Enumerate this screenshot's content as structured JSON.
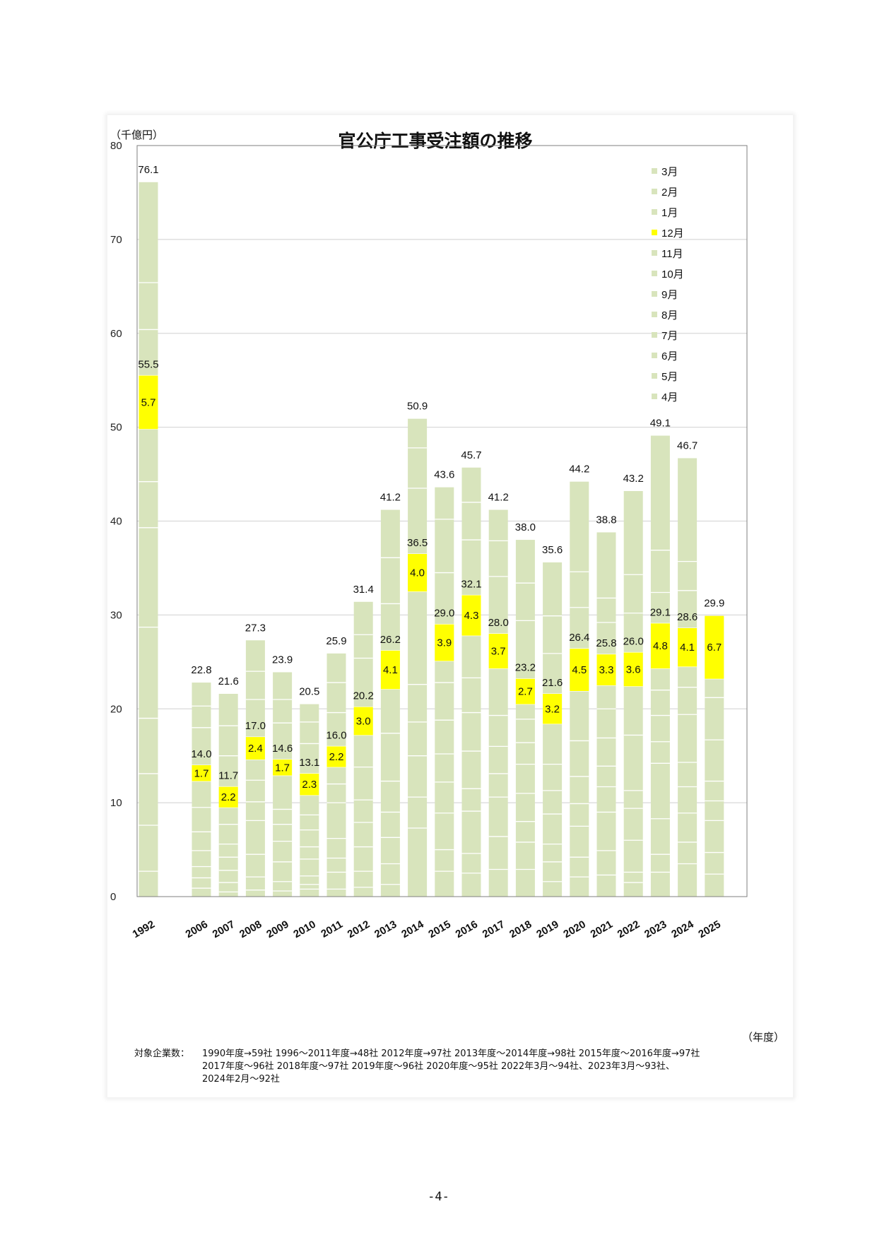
{
  "page": {
    "page_number": "-4-"
  },
  "note": {
    "prefix": "対象企業数：",
    "lines": [
      "1990年度→59社 1996～2011年度→48社 2012年度→97社 2013年度～2014年度→98社 2015年度～2016年度→97社",
      "2017年度～96社 2018年度～97社 2019年度～96社 2020年度～95社 2022年3月～94社、2023年3月～93社、",
      "2024年2月～92社"
    ]
  },
  "colors": {
    "bar_fill": "#d8e4bc",
    "december_fill": "#ffff00",
    "gridline": "#d9d9d9",
    "frame": "#7f7f7f"
  },
  "chart_data": {
    "type": "bar",
    "stacked": true,
    "title": "官公庁工事受注額の推移",
    "ylabel": "（千億円）",
    "xlabel": "（年度）",
    "ylim": [
      0,
      80
    ],
    "yticks": [
      0,
      10,
      20,
      30,
      40,
      50,
      60,
      70,
      80
    ],
    "grid": true,
    "legend_position": "top-right",
    "legend": [
      "3月",
      "2月",
      "1月",
      "12月",
      "11月",
      "10月",
      "9月",
      "8月",
      "7月",
      "6月",
      "5月",
      "4月"
    ],
    "highlight_series": "12月",
    "categories": [
      "1992",
      "2006",
      "2007",
      "2008",
      "2009",
      "2010",
      "2011",
      "2012",
      "2013",
      "2014",
      "2015",
      "2016",
      "2017",
      "2018",
      "2019",
      "2020",
      "2021",
      "2022",
      "2023",
      "2024",
      "2025"
    ],
    "gap_after_index": 0,
    "annual_totals": [
      76.1,
      22.8,
      21.6,
      27.3,
      23.9,
      20.5,
      25.9,
      31.4,
      41.2,
      50.9,
      43.6,
      45.7,
      41.2,
      38.0,
      35.6,
      44.2,
      38.8,
      43.2,
      49.1,
      46.7,
      29.9
    ],
    "cumulative_through_december": [
      55.5,
      14.0,
      11.7,
      17.0,
      14.6,
      13.1,
      16.0,
      20.2,
      26.2,
      36.5,
      29.0,
      32.1,
      28.0,
      23.2,
      21.6,
      26.4,
      25.8,
      26.0,
      29.1,
      28.6,
      29.9
    ],
    "december_values": [
      5.7,
      1.7,
      2.2,
      2.4,
      1.7,
      2.3,
      2.2,
      3.0,
      4.1,
      4.0,
      3.9,
      4.3,
      3.7,
      2.7,
      3.2,
      4.5,
      3.3,
      3.6,
      4.8,
      4.1,
      6.7
    ],
    "monthly_cumulative_estimates": [
      [
        2.7,
        7.6,
        13.1,
        19.0,
        28.7,
        39.3,
        44.2,
        49.8,
        55.5,
        60.4,
        65.4,
        76.1
      ],
      [
        0.9,
        2.0,
        3.2,
        4.9,
        6.9,
        9.5,
        12.3,
        14.0,
        18.0,
        20.3,
        22.8
      ],
      [
        0.5,
        1.5,
        2.8,
        4.2,
        5.6,
        7.7,
        9.5,
        11.7,
        15.0,
        18.2,
        21.6
      ],
      [
        0.7,
        2.1,
        4.5,
        8.1,
        10.1,
        12.4,
        14.6,
        17.0,
        21.0,
        24.0,
        27.3
      ],
      [
        0.6,
        1.6,
        3.7,
        5.9,
        7.7,
        9.3,
        12.9,
        14.6,
        18.5,
        21.0,
        23.9
      ],
      [
        0.8,
        1.3,
        2.2,
        4.0,
        5.3,
        7.1,
        8.7,
        10.8,
        13.1,
        16.3,
        18.6,
        20.5
      ],
      [
        0.8,
        2.6,
        4.1,
        6.2,
        10.0,
        12.0,
        13.8,
        16.0,
        19.6,
        22.8,
        25.9
      ],
      [
        1.0,
        2.7,
        5.3,
        7.9,
        10.3,
        13.8,
        17.2,
        20.2,
        25.4,
        27.9,
        31.4
      ],
      [
        1.3,
        3.5,
        6.3,
        9.0,
        12.3,
        17.4,
        22.1,
        26.2,
        31.2,
        36.1,
        41.2
      ],
      [
        7.3,
        10.6,
        15.0,
        18.6,
        22.6,
        32.5,
        36.5,
        43.5,
        47.8,
        50.9
      ],
      [
        2.7,
        5.0,
        8.9,
        12.2,
        15.2,
        18.8,
        22.8,
        25.1,
        29.0,
        34.5,
        40.2,
        43.6
      ],
      [
        2.5,
        4.6,
        9.1,
        11.5,
        15.5,
        19.6,
        23.3,
        27.8,
        32.1,
        38.0,
        42.0,
        45.7
      ],
      [
        2.9,
        6.4,
        10.6,
        13.1,
        16.0,
        19.3,
        24.3,
        28.0,
        34.1,
        37.9,
        41.2
      ],
      [
        2.9,
        5.8,
        8.0,
        11.0,
        14.1,
        16.4,
        18.9,
        20.5,
        23.2,
        29.4,
        33.4,
        38.0
      ],
      [
        1.6,
        3.7,
        5.6,
        8.8,
        11.3,
        14.1,
        18.4,
        21.6,
        25.9,
        29.9,
        35.6
      ],
      [
        2.1,
        4.2,
        7.5,
        9.9,
        12.8,
        16.6,
        21.9,
        26.4,
        30.8,
        34.6,
        44.2
      ],
      [
        2.3,
        4.9,
        9.0,
        11.7,
        13.9,
        16.9,
        20.0,
        22.5,
        25.8,
        29.2,
        31.8,
        38.8
      ],
      [
        1.5,
        2.6,
        6.0,
        9.4,
        11.3,
        17.2,
        22.4,
        26.0,
        30.2,
        34.3,
        43.2
      ],
      [
        2.6,
        4.5,
        8.3,
        14.2,
        16.5,
        19.3,
        22.0,
        24.3,
        29.1,
        32.4,
        36.9,
        49.1
      ],
      [
        3.5,
        5.8,
        8.9,
        11.7,
        14.3,
        19.4,
        22.3,
        24.5,
        28.6,
        32.6,
        35.7,
        46.7
      ],
      [
        2.4,
        4.7,
        8.1,
        10.2,
        12.3,
        16.7,
        21.2,
        23.2,
        29.9
      ]
    ]
  }
}
